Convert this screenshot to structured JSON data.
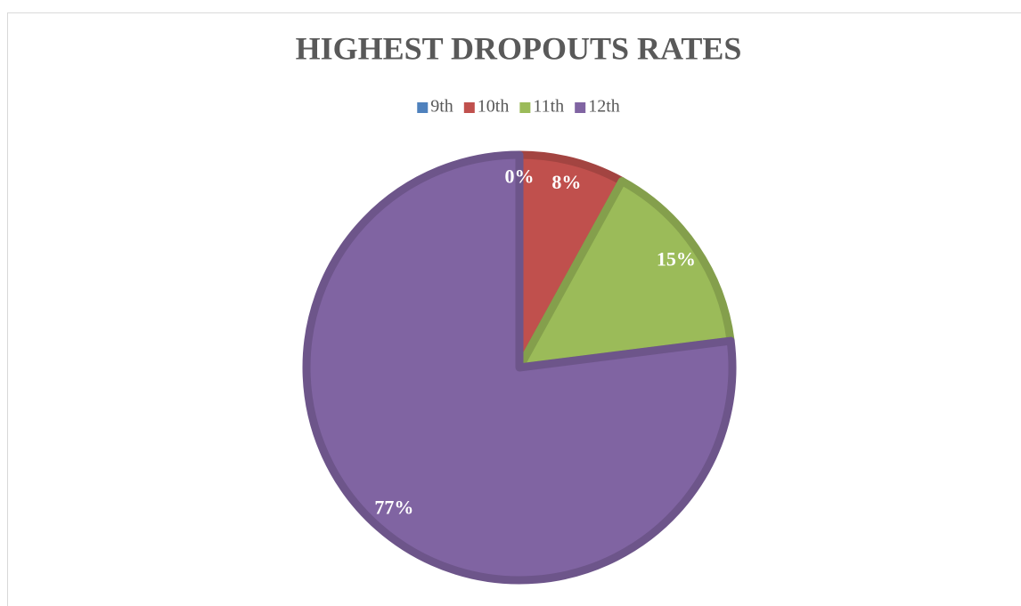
{
  "chart_data": {
    "type": "pie",
    "title": "HIGHEST DROPOUTS RATES",
    "categories": [
      "9th",
      "10th",
      "11th",
      "12th"
    ],
    "values": [
      0,
      8,
      15,
      77
    ],
    "value_labels": [
      "0%",
      "8%",
      "15%",
      "77%"
    ],
    "colors": [
      "#4f81bd",
      "#c0504d",
      "#9bbb59",
      "#8064a2"
    ],
    "legend": "top"
  }
}
